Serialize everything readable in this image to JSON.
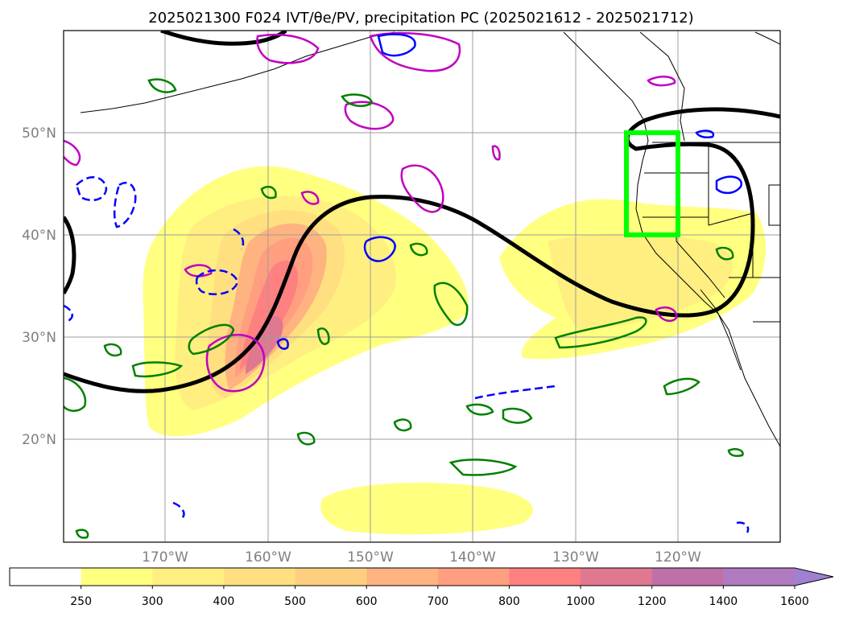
{
  "title": "2025021300 F024 IVT/θe/PV, precipitation PC (2025021612 - 2025021712)",
  "map": {
    "lat_labels": [
      "50°N",
      "40°N",
      "30°N",
      "20°N"
    ],
    "lon_labels": [
      "170°W",
      "160°W",
      "150°W",
      "140°W",
      "130°W",
      "120°W"
    ],
    "highlight_box_color": "#00ff00",
    "grid": true
  },
  "colorbar": {
    "ticks": [
      "250",
      "300",
      "400",
      "500",
      "600",
      "700",
      "800",
      "1000",
      "1200",
      "1400",
      "1600"
    ],
    "colors": [
      "#ffffff",
      "#ffff80",
      "#ffef80",
      "#ffdf80",
      "#ffcf80",
      "#ffb380",
      "#ff9f80",
      "#ff8080",
      "#e07890",
      "#c070a8",
      "#b07ac0",
      "#a080d0"
    ],
    "extend": "max"
  }
}
